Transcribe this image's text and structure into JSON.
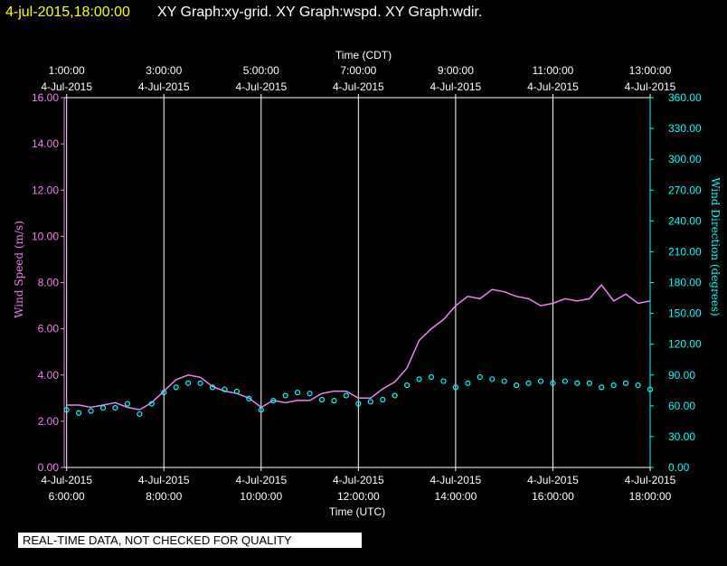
{
  "header": {
    "timestamp": "4-jul-2015,18:00:00",
    "graphs": "XY Graph:xy-grid.  XY Graph:wspd.  XY Graph:wdir."
  },
  "footer_note": "REAL-TIME DATA, NOT CHECKED FOR QUALITY",
  "colors": {
    "timestamp": "#ffff00",
    "title": "#ffffff",
    "speed": "#ee82ee",
    "direction": "#00ffff",
    "grid": "#ffffff",
    "background": "#000000"
  },
  "chart_data": {
    "type": "line",
    "top_axis": {
      "label": "Time (CDT)",
      "ticks": [
        {
          "time": "1:00:00",
          "date": "4-Jul-2015"
        },
        {
          "time": "3:00:00",
          "date": "4-Jul-2015"
        },
        {
          "time": "5:00:00",
          "date": "4-Jul-2015"
        },
        {
          "time": "7:00:00",
          "date": "4-Jul-2015"
        },
        {
          "time": "9:00:00",
          "date": "4-Jul-2015"
        },
        {
          "time": "11:00:00",
          "date": "4-Jul-2015"
        },
        {
          "time": "13:00:00",
          "date": "4-Jul-2015"
        }
      ]
    },
    "bottom_axis": {
      "label": "Time (UTC)",
      "ticks": [
        {
          "date": "4-Jul-2015",
          "time": "6:00:00"
        },
        {
          "date": "4-Jul-2015",
          "time": "8:00:00"
        },
        {
          "date": "4-Jul-2015",
          "time": "10:00:00"
        },
        {
          "date": "4-Jul-2015",
          "time": "12:00:00"
        },
        {
          "date": "4-Jul-2015",
          "time": "14:00:00"
        },
        {
          "date": "4-Jul-2015",
          "time": "16:00:00"
        },
        {
          "date": "4-Jul-2015",
          "time": "18:00:00"
        }
      ],
      "range_utc_hours": [
        5.95,
        18
      ]
    },
    "left_axis": {
      "label": "Wind Speed (m/s)",
      "ylim": [
        0,
        16
      ],
      "ticks": [
        "0.00",
        "2.00",
        "4.00",
        "6.00",
        "8.00",
        "10.00",
        "12.00",
        "14.00",
        "16.00"
      ]
    },
    "right_axis": {
      "label": "Wind Direction (degrees)",
      "ylim": [
        0,
        360
      ],
      "ticks": [
        "0.00",
        "30.00",
        "60.00",
        "90.00",
        "120.00",
        "150.00",
        "180.00",
        "210.00",
        "240.00",
        "270.00",
        "300.00",
        "330.00",
        "360.00"
      ]
    },
    "grid": "vertical",
    "series": [
      {
        "name": "wspd",
        "axis": "left",
        "style": "line",
        "x_utc_hours": [
          6.0,
          6.25,
          6.5,
          6.75,
          7.0,
          7.25,
          7.5,
          7.75,
          8.0,
          8.25,
          8.5,
          8.75,
          9.0,
          9.25,
          9.5,
          9.75,
          10.0,
          10.25,
          10.5,
          10.75,
          11.0,
          11.25,
          11.5,
          11.75,
          12.0,
          12.25,
          12.5,
          12.75,
          13.0,
          13.25,
          13.5,
          13.75,
          14.0,
          14.25,
          14.5,
          14.75,
          15.0,
          15.25,
          15.5,
          15.75,
          16.0,
          16.25,
          16.5,
          16.75,
          17.0,
          17.25,
          17.5,
          17.75,
          18.0
        ],
        "values": [
          2.7,
          2.7,
          2.6,
          2.7,
          2.8,
          2.6,
          2.5,
          2.8,
          3.3,
          3.8,
          4.0,
          3.9,
          3.5,
          3.3,
          3.2,
          3.0,
          2.6,
          2.9,
          2.8,
          2.9,
          2.9,
          3.2,
          3.3,
          3.3,
          3.0,
          3.0,
          3.4,
          3.7,
          4.3,
          5.5,
          6.0,
          6.4,
          7.0,
          7.4,
          7.3,
          7.7,
          7.6,
          7.4,
          7.3,
          7.0,
          7.1,
          7.3,
          7.2,
          7.3,
          7.9,
          7.2,
          7.5,
          7.1,
          7.2
        ]
      },
      {
        "name": "wdir",
        "axis": "right",
        "style": "markers",
        "x_utc_hours": [
          6.0,
          6.25,
          6.5,
          6.75,
          7.0,
          7.25,
          7.5,
          7.75,
          8.0,
          8.25,
          8.5,
          8.75,
          9.0,
          9.25,
          9.5,
          9.75,
          10.0,
          10.25,
          10.5,
          10.75,
          11.0,
          11.25,
          11.5,
          11.75,
          12.0,
          12.25,
          12.5,
          12.75,
          13.0,
          13.25,
          13.5,
          13.75,
          14.0,
          14.25,
          14.5,
          14.75,
          15.0,
          15.25,
          15.5,
          15.75,
          16.0,
          16.25,
          16.5,
          16.75,
          17.0,
          17.25,
          17.5,
          17.75,
          18.0
        ],
        "values": [
          56,
          53,
          55,
          58,
          58,
          62,
          52,
          62,
          73,
          78,
          82,
          82,
          78,
          76,
          74,
          67,
          56,
          65,
          70,
          73,
          72,
          66,
          65,
          70,
          62,
          64,
          66,
          70,
          80,
          86,
          88,
          84,
          78,
          82,
          88,
          86,
          84,
          80,
          82,
          84,
          82,
          84,
          82,
          82,
          78,
          80,
          82,
          80,
          76
        ]
      }
    ]
  }
}
